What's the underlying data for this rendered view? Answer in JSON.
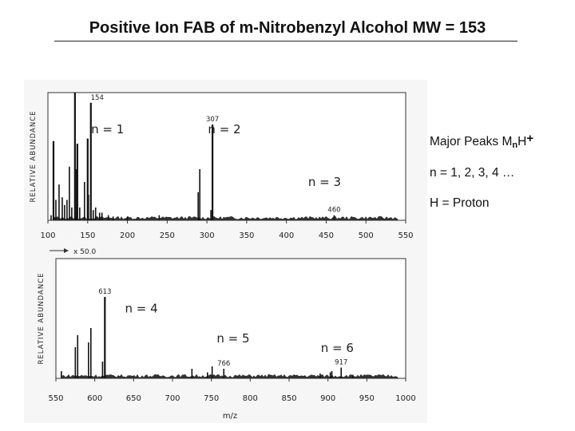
{
  "title": "Positive Ion FAB of m-Nitrobenzyl Alcohol MW = 153",
  "notes": {
    "major_peaks_prefix": "Major Peaks M",
    "major_peaks_sub": "n",
    "major_peaks_mid": "H",
    "major_peaks_sup": "+",
    "n_values": "n = 1, 2, 3, 4 …",
    "h_def": "H = Proton"
  },
  "chart_data": [
    {
      "type": "bar",
      "ylabel": "RELATIVE ABUNDANCE",
      "xlabel": "",
      "xlim": [
        100,
        550
      ],
      "ylim": [
        0,
        100
      ],
      "xticks": [
        100,
        150,
        200,
        250,
        300,
        350,
        400,
        450,
        500,
        550
      ],
      "series": [
        {
          "x": [
            104,
            107,
            110,
            114,
            118,
            121,
            124,
            127,
            130,
            134,
            136,
            137,
            140,
            146,
            150,
            151,
            154,
            157,
            160,
            165,
            168,
            176,
            182,
            200,
            240,
            289,
            291,
            305,
            307,
            460
          ],
          "values": [
            4,
            62,
            16,
            28,
            18,
            12,
            16,
            42,
            10,
            100,
            40,
            60,
            10,
            30,
            64,
            20,
            92,
            8,
            10,
            6,
            6,
            4,
            3,
            3,
            4,
            22,
            40,
            8,
            75,
            4
          ]
        }
      ],
      "annotations": [
        {
          "label": "154",
          "x": 154
        },
        {
          "label": "307",
          "x": 307
        },
        {
          "label": "460",
          "x": 460
        },
        {
          "label": "n = 1",
          "x": 175,
          "y": 68
        },
        {
          "label": "n = 2",
          "x": 322,
          "y": 68
        },
        {
          "label": "n = 3",
          "x": 448,
          "y": 27
        }
      ]
    },
    {
      "type": "bar",
      "ylabel": "RELATIVE ABUNDANCE",
      "xlabel": "m/z",
      "gain_label": "x  50.0",
      "xlim": [
        550,
        1000
      ],
      "ylim": [
        0,
        100
      ],
      "xticks": [
        550,
        600,
        650,
        700,
        750,
        800,
        850,
        900,
        950,
        1000
      ],
      "series": [
        {
          "x": [
            557,
            575,
            578,
            592,
            595,
            610,
            613,
            725,
            745,
            751,
            766,
            890,
            903,
            905,
            917,
            932
          ],
          "values": [
            6,
            26,
            36,
            30,
            42,
            14,
            68,
            8,
            5,
            10,
            8,
            4,
            5,
            6,
            9,
            3
          ]
        }
      ],
      "annotations": [
        {
          "label": "613",
          "x": 613
        },
        {
          "label": "766",
          "x": 766
        },
        {
          "label": "917",
          "x": 917
        },
        {
          "label": "n = 4",
          "x": 660,
          "y": 55
        },
        {
          "label": "n = 5",
          "x": 778,
          "y": 30
        },
        {
          "label": "n = 6",
          "x": 912,
          "y": 22
        }
      ]
    }
  ]
}
